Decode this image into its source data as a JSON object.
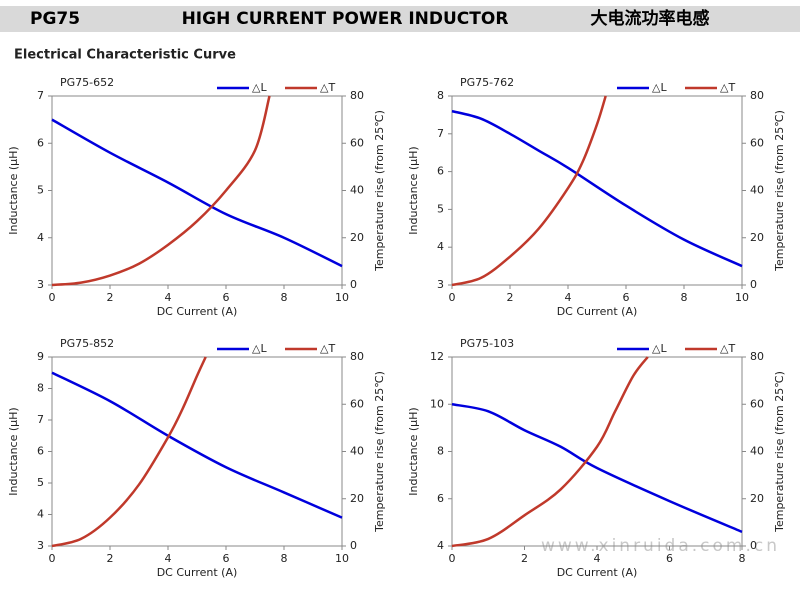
{
  "header": {
    "part": "PG75",
    "title": "HIGH CURRENT POWER INDUCTOR",
    "title_cn": "大电流功率电感",
    "section": "Electrical Characteristic Curve",
    "watermark": "www.xinruida.com.cn"
  },
  "chart_data": [
    {
      "type": "line",
      "title": "PG75-652",
      "x_label": "DC Current (A)",
      "y_label": "Inductance (µH)",
      "y2_label": "Temperature rise (from 25℃)",
      "xlim": [
        0,
        10
      ],
      "xticks": [
        0,
        2,
        4,
        6,
        8,
        10
      ],
      "ylim": [
        3,
        7
      ],
      "yticks": [
        3,
        4,
        5,
        6,
        7
      ],
      "y2lim": [
        0,
        80
      ],
      "y2ticks": [
        0,
        20,
        40,
        60,
        80
      ],
      "series": [
        {
          "name": "△L",
          "color": "#0000dd",
          "x": [
            0,
            2,
            4,
            6,
            8,
            10
          ],
          "values": [
            6.5,
            5.8,
            5.17,
            4.5,
            4.0,
            3.4
          ]
        },
        {
          "name": "△T",
          "color": "#c0392b",
          "axis": "y2",
          "x": [
            0,
            1,
            2,
            3,
            4,
            5,
            6,
            7,
            7.5
          ],
          "values": [
            0,
            1,
            4,
            9,
            17,
            27,
            40,
            57,
            80
          ]
        }
      ]
    },
    {
      "type": "line",
      "title": "PG75-762",
      "x_label": "DC Current (A)",
      "y_label": "Inductance (µH)",
      "y2_label": "Temperature rise (from 25℃)",
      "xlim": [
        0,
        10
      ],
      "xticks": [
        0,
        2,
        4,
        6,
        8,
        10
      ],
      "ylim": [
        3,
        8
      ],
      "yticks": [
        3,
        4,
        5,
        6,
        7,
        8
      ],
      "y2lim": [
        0,
        80
      ],
      "y2ticks": [
        0,
        20,
        40,
        60,
        80
      ],
      "series": [
        {
          "name": "△L",
          "color": "#0000dd",
          "x": [
            0,
            1,
            2,
            3,
            4,
            6,
            8,
            10
          ],
          "values": [
            7.6,
            7.4,
            7.0,
            6.55,
            6.1,
            5.1,
            4.2,
            3.5
          ]
        },
        {
          "name": "△T",
          "color": "#c0392b",
          "axis": "y2",
          "x": [
            0,
            1,
            2,
            3,
            4,
            4.5,
            5,
            5.3
          ],
          "values": [
            0,
            3,
            12,
            24,
            41,
            52,
            68,
            80
          ]
        }
      ]
    },
    {
      "type": "line",
      "title": "PG75-852",
      "x_label": "DC Current (A)",
      "y_label": "Inductance (µH)",
      "y2_label": "Temperature rise (from 25℃)",
      "xlim": [
        0,
        10
      ],
      "xticks": [
        0,
        2,
        4,
        6,
        8,
        10
      ],
      "ylim": [
        3,
        9
      ],
      "yticks": [
        3,
        4,
        5,
        6,
        7,
        8,
        9
      ],
      "y2lim": [
        0,
        80
      ],
      "y2ticks": [
        0,
        20,
        40,
        60,
        80
      ],
      "series": [
        {
          "name": "△L",
          "color": "#0000dd",
          "x": [
            0,
            2,
            4,
            6,
            8,
            10
          ],
          "values": [
            8.5,
            7.6,
            6.5,
            5.5,
            4.7,
            3.9
          ]
        },
        {
          "name": "△T",
          "color": "#c0392b",
          "axis": "y2",
          "x": [
            0,
            1,
            2,
            3,
            4,
            4.5,
            5,
            5.3
          ],
          "values": [
            0,
            3,
            12,
            26,
            46,
            58,
            72,
            80
          ]
        }
      ]
    },
    {
      "type": "line",
      "title": "PG75-103",
      "x_label": "DC Current (A)",
      "y_label": "Inductance (µH)",
      "y2_label": "Temperature rise (from 25℃)",
      "xlim": [
        0,
        8
      ],
      "xticks": [
        0,
        2,
        4,
        6,
        8
      ],
      "ylim": [
        4,
        12
      ],
      "yticks": [
        4,
        6,
        8,
        10,
        12
      ],
      "y2lim": [
        0,
        80
      ],
      "y2ticks": [
        0,
        20,
        40,
        60,
        80
      ],
      "series": [
        {
          "name": "△L",
          "color": "#0000dd",
          "x": [
            0,
            1,
            2,
            3,
            4,
            6,
            8
          ],
          "values": [
            10.0,
            9.7,
            8.9,
            8.2,
            7.3,
            5.9,
            4.6
          ]
        },
        {
          "name": "△T",
          "color": "#c0392b",
          "axis": "y2",
          "x": [
            0,
            1,
            2,
            3,
            4,
            4.5,
            5,
            5.4
          ],
          "values": [
            0,
            3,
            13,
            24,
            42,
            57,
            72,
            80
          ]
        }
      ]
    }
  ]
}
